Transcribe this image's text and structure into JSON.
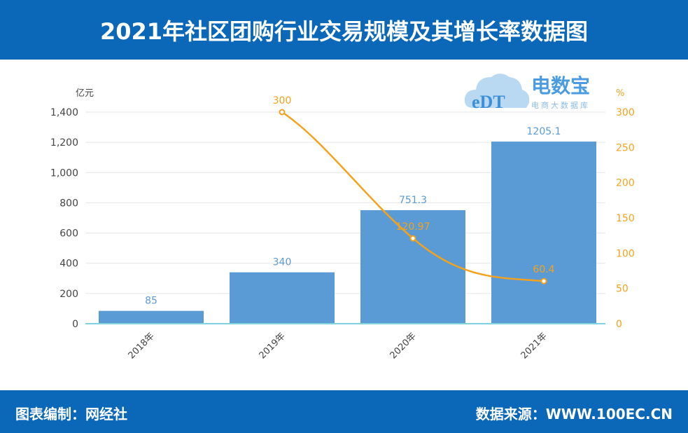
{
  "header": {
    "title": "2021年社区团购行业交易规模及其增长率数据图"
  },
  "footer": {
    "left": "图表编制：网经社",
    "right": "数据来源：WWW.100EC.CN"
  },
  "logo": {
    "text": "电数宝",
    "sub": "电商大数据库",
    "mark": "eDT"
  },
  "chart_data": {
    "type": "bar+line",
    "categories": [
      "2018年",
      "2019年",
      "2020年",
      "2021年"
    ],
    "series": [
      {
        "type": "bar",
        "axis": "left",
        "values": [
          85,
          340,
          751.3,
          1205.1
        ],
        "labels": [
          "85",
          "340",
          "751.3",
          "1205.1"
        ],
        "color": "#5b9bd5"
      },
      {
        "type": "line",
        "axis": "right",
        "values": [
          null,
          300,
          120.97,
          60.4
        ],
        "labels": [
          "",
          "300",
          "120.97",
          "60.4"
        ],
        "color": "#f4a21b"
      }
    ],
    "ylabel_left": "亿元",
    "ylim_left": [
      0,
      1400
    ],
    "yticks_left": [
      "0",
      "200",
      "400",
      "600",
      "800",
      "1,000",
      "1,200",
      "1,400"
    ],
    "ylabel_right": "%",
    "ylim_right": [
      0,
      300
    ],
    "yticks_right": [
      "0",
      "50",
      "100",
      "150",
      "200",
      "250",
      "300"
    ],
    "grid": true
  }
}
